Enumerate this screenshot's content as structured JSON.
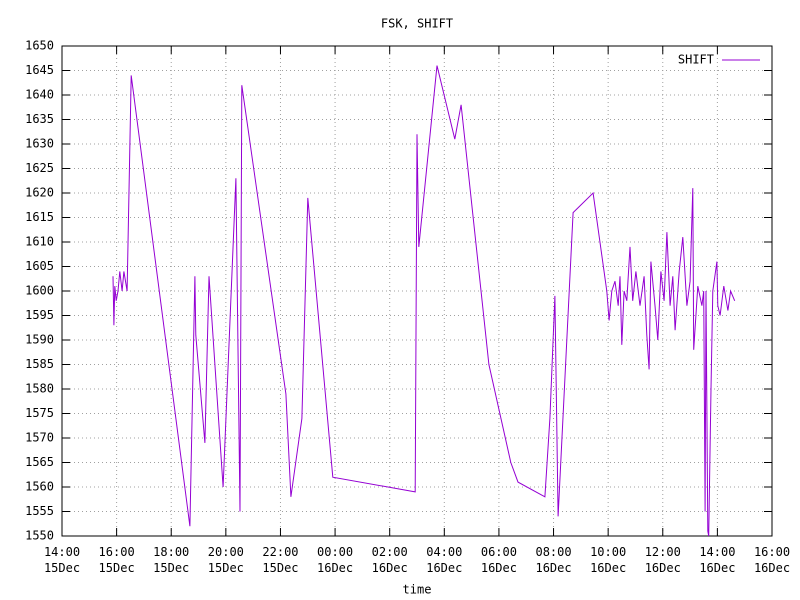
{
  "chart_data": {
    "type": "line",
    "title": "FSK, SHIFT",
    "x_label": "time",
    "x": [
      "15:52 15Dec",
      "15:54 15Dec",
      "15:56 15Dec",
      "15:59 15Dec",
      "16:03 15Dec",
      "16:07 15Dec",
      "16:12 15Dec",
      "16:16 15Dec",
      "16:23 15Dec",
      "16:32 15Dec",
      "18:41 15Dec",
      "18:52 15Dec",
      "18:54 15Dec",
      "19:14 15Dec",
      "19:23 15Dec",
      "19:54 15Dec",
      "20:22 15Dec",
      "20:31 15Dec",
      "20:35 15Dec",
      "22:12 15Dec",
      "22:23 15Dec",
      "22:47 15Dec",
      "23:00 15Dec",
      "23:55 15Dec",
      "02:56 16Dec",
      "03:00 16Dec",
      "03:04 16Dec",
      "03:44 16Dec",
      "04:23 16Dec",
      "04:37 16Dec",
      "05:38 16Dec",
      "06:26 16Dec",
      "06:42 16Dec",
      "07:41 16Dec",
      "07:52 16Dec",
      "08:03 16Dec",
      "08:10 16Dec",
      "08:43 16Dec",
      "09:27 16Dec",
      "09:57 16Dec",
      "10:02 16Dec",
      "10:08 16Dec",
      "10:15 16Dec",
      "10:22 16Dec",
      "10:26 16Dec",
      "10:30 16Dec",
      "10:35 16Dec",
      "10:41 16Dec",
      "10:48 16Dec",
      "10:54 16Dec",
      "11:01 16Dec",
      "11:10 16Dec",
      "11:19 16Dec",
      "11:25 16Dec",
      "11:30 16Dec",
      "11:34 16Dec",
      "11:43 16Dec",
      "11:49 16Dec",
      "11:56 16Dec",
      "12:03 16Dec",
      "12:09 16Dec",
      "12:16 16Dec",
      "12:22 16Dec",
      "12:27 16Dec",
      "12:36 16Dec",
      "12:44 16Dec",
      "12:53 16Dec",
      "13:00 16Dec",
      "13:06 16Dec",
      "13:08 16Dec",
      "13:17 16Dec",
      "13:26 16Dec",
      "13:30 16Dec",
      "13:33 16Dec",
      "13:35 16Dec",
      "13:39 16Dec",
      "13:41 16Dec",
      "13:46 16Dec",
      "13:50 16Dec",
      "13:59 16Dec",
      "14:01 16Dec",
      "14:06 16Dec",
      "14:14 16Dec",
      "14:23 16Dec",
      "14:29 16Dec",
      "14:38 16Dec"
    ],
    "series": [
      {
        "name": "SHIFT",
        "color": "#9400d3",
        "values": [
          1603,
          1593,
          1601,
          1598,
          1600,
          1604,
          1600,
          1604,
          1600,
          1644,
          1552,
          1603,
          1591,
          1569,
          1603,
          1560,
          1623,
          1555,
          1642,
          1579,
          1558,
          1574,
          1619,
          1562,
          1559,
          1632,
          1609,
          1646,
          1631,
          1638,
          1585,
          1565,
          1561,
          1558,
          1574,
          1599,
          1554,
          1616,
          1620,
          1600,
          1594,
          1600,
          1602,
          1597,
          1603,
          1589,
          1600,
          1598,
          1609,
          1598,
          1604,
          1597,
          1603,
          1591,
          1584,
          1606,
          1597,
          1590,
          1604,
          1598,
          1612,
          1597,
          1603,
          1592,
          1604,
          1611,
          1597,
          1602,
          1621,
          1588,
          1601,
          1597,
          1600,
          1555,
          1600,
          1551,
          1550,
          1580,
          1600,
          1606,
          1597,
          1595,
          1601,
          1596,
          1600,
          1598
        ]
      }
    ],
    "xlim": [
      "14:00 15Dec",
      "16:00 16Dec"
    ],
    "xticks": [
      "14:00 15Dec",
      "16:00 15Dec",
      "18:00 15Dec",
      "20:00 15Dec",
      "22:00 15Dec",
      "00:00 16Dec",
      "02:00 16Dec",
      "04:00 16Dec",
      "06:00 16Dec",
      "08:00 16Dec",
      "10:00 16Dec",
      "12:00 16Dec",
      "14:00 16Dec",
      "16:00 16Dec"
    ],
    "ylim": [
      1550,
      1650
    ],
    "yticks": [
      1550,
      1555,
      1560,
      1565,
      1570,
      1575,
      1580,
      1585,
      1590,
      1595,
      1600,
      1605,
      1610,
      1615,
      1620,
      1625,
      1630,
      1635,
      1640,
      1645,
      1650
    ],
    "grid": true,
    "legend": "top-right"
  }
}
